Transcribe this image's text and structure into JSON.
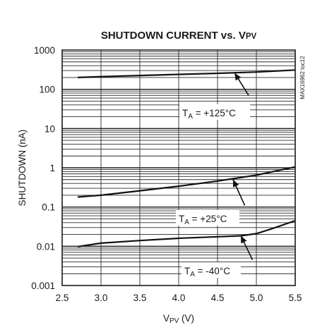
{
  "chart_data": {
    "type": "line",
    "title_main": "SHUTDOWN CURRENT vs. V",
    "title_sub": "PV",
    "xlabel_main": "V",
    "xlabel_sub": "PV",
    "xlabel_unit": " (V)",
    "ylabel": "SHUTDOWN (nA)",
    "part_number": "MAX16962 toc12",
    "xlim": [
      2.5,
      5.5
    ],
    "ylim": [
      0.001,
      1000
    ],
    "yscale": "log",
    "grid": true,
    "x_ticks": [
      "2.5",
      "3.0",
      "3.5",
      "4.0",
      "4.5",
      "5.0",
      "5.5"
    ],
    "y_ticks": [
      "0.001",
      "0.01",
      "0.1",
      "1",
      "10",
      "100",
      "1000"
    ],
    "series": [
      {
        "name": "T_A = +125°C",
        "label_main": "T",
        "label_sub": "A",
        "label_rest": " = +125°C",
        "x": [
          2.7,
          3.0,
          3.5,
          4.0,
          4.5,
          5.0,
          5.5
        ],
        "y": [
          200,
          210,
          225,
          240,
          255,
          275,
          310
        ]
      },
      {
        "name": "T_A = +25°C",
        "label_main": "T",
        "label_sub": "A",
        "label_rest": " = +25°C",
        "x": [
          2.7,
          3.0,
          3.5,
          4.0,
          4.5,
          5.0,
          5.5
        ],
        "y": [
          0.18,
          0.2,
          0.26,
          0.34,
          0.46,
          0.65,
          1.05
        ]
      },
      {
        "name": "T_A = -40°C",
        "label_main": "T",
        "label_sub": "A",
        "label_rest": " = -40°C",
        "x": [
          2.7,
          3.0,
          3.5,
          4.0,
          4.5,
          4.8,
          5.0,
          5.2,
          5.5
        ],
        "y": [
          0.0098,
          0.012,
          0.014,
          0.016,
          0.0175,
          0.0185,
          0.021,
          0.028,
          0.045
        ]
      }
    ]
  }
}
